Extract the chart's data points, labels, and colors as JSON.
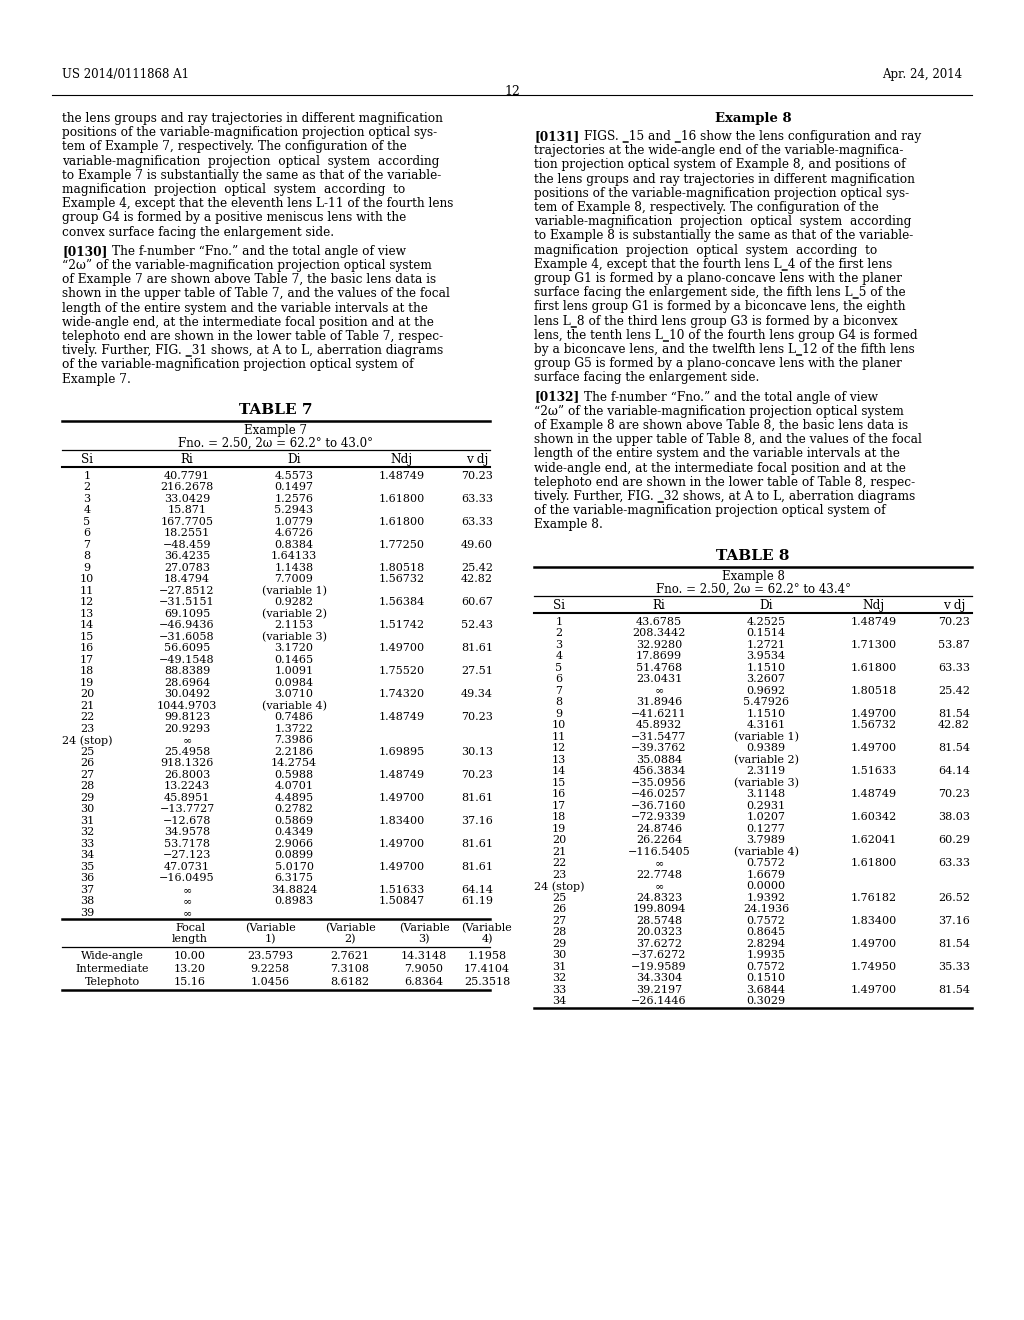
{
  "header_left": "US 2014/0111868 A1",
  "header_right": "Apr. 24, 2014",
  "page_number": "12",
  "table7_title": "TABLE 7",
  "table7_example": "Example 7",
  "table7_fno": "Fno. = 2.50, 2ω = 62.2° to 43.0°",
  "table7_headers": [
    "Si",
    "Ri",
    "Di",
    "Ndj",
    "v dj"
  ],
  "table7_upper": [
    [
      "1",
      "40.7791",
      "4.5573",
      "1.48749",
      "70.23"
    ],
    [
      "2",
      "216.2678",
      "0.1497",
      "",
      ""
    ],
    [
      "3",
      "33.0429",
      "1.2576",
      "1.61800",
      "63.33"
    ],
    [
      "4",
      "15.871",
      "5.2943",
      "",
      ""
    ],
    [
      "5",
      "167.7705",
      "1.0779",
      "1.61800",
      "63.33"
    ],
    [
      "6",
      "18.2551",
      "4.6726",
      "",
      ""
    ],
    [
      "7",
      "−48.459",
      "0.8384",
      "1.77250",
      "49.60"
    ],
    [
      "8",
      "36.4235",
      "1.64133",
      "",
      ""
    ],
    [
      "9",
      "27.0783",
      "1.1438",
      "1.80518",
      "25.42"
    ],
    [
      "10",
      "18.4794",
      "7.7009",
      "1.56732",
      "42.82"
    ],
    [
      "11",
      "−27.8512",
      "(variable 1)",
      "",
      ""
    ],
    [
      "12",
      "−31.5151",
      "0.9282",
      "1.56384",
      "60.67"
    ],
    [
      "13",
      "69.1095",
      "(variable 2)",
      "",
      ""
    ],
    [
      "14",
      "−46.9436",
      "2.1153",
      "1.51742",
      "52.43"
    ],
    [
      "15",
      "−31.6058",
      "(variable 3)",
      "",
      ""
    ],
    [
      "16",
      "56.6095",
      "3.1720",
      "1.49700",
      "81.61"
    ],
    [
      "17",
      "−49.1548",
      "0.1465",
      "",
      ""
    ],
    [
      "18",
      "88.8389",
      "1.0091",
      "1.75520",
      "27.51"
    ],
    [
      "19",
      "28.6964",
      "0.0984",
      "",
      ""
    ],
    [
      "20",
      "30.0492",
      "3.0710",
      "1.74320",
      "49.34"
    ],
    [
      "21",
      "1044.9703",
      "(variable 4)",
      "",
      ""
    ],
    [
      "22",
      "99.8123",
      "0.7486",
      "1.48749",
      "70.23"
    ],
    [
      "23",
      "20.9293",
      "1.3722",
      "",
      ""
    ],
    [
      "24 (stop)",
      "∞",
      "7.3986",
      "",
      ""
    ],
    [
      "25",
      "25.4958",
      "2.2186",
      "1.69895",
      "30.13"
    ],
    [
      "26",
      "918.1326",
      "14.2754",
      "",
      ""
    ],
    [
      "27",
      "26.8003",
      "0.5988",
      "1.48749",
      "70.23"
    ],
    [
      "28",
      "13.2243",
      "4.0701",
      "",
      ""
    ],
    [
      "29",
      "45.8951",
      "4.4895",
      "1.49700",
      "81.61"
    ],
    [
      "30",
      "−13.7727",
      "0.2782",
      "",
      ""
    ],
    [
      "31",
      "−12.678",
      "0.5869",
      "1.83400",
      "37.16"
    ],
    [
      "32",
      "34.9578",
      "0.4349",
      "",
      ""
    ],
    [
      "33",
      "53.7178",
      "2.9066",
      "1.49700",
      "81.61"
    ],
    [
      "34",
      "−27.123",
      "0.0899",
      "",
      ""
    ],
    [
      "35",
      "47.0731",
      "5.0170",
      "1.49700",
      "81.61"
    ],
    [
      "36",
      "−16.0495",
      "6.3175",
      "",
      ""
    ],
    [
      "37",
      "∞",
      "34.8824",
      "1.51633",
      "64.14"
    ],
    [
      "38",
      "∞",
      "0.8983",
      "1.50847",
      "61.19"
    ],
    [
      "39",
      "∞",
      "",
      "",
      ""
    ]
  ],
  "table7_lower": [
    [
      "Wide-angle",
      "10.00",
      "23.5793",
      "2.7621",
      "14.3148",
      "1.1958"
    ],
    [
      "Intermediate",
      "13.20",
      "9.2258",
      "7.3108",
      "7.9050",
      "17.4104"
    ],
    [
      "Telephoto",
      "15.16",
      "1.0456",
      "8.6182",
      "6.8364",
      "25.3518"
    ]
  ],
  "table8_title": "TABLE 8",
  "table8_example": "Example 8",
  "table8_fno": "Fno. = 2.50, 2ω = 62.2° to 43.4°",
  "table8_headers": [
    "Si",
    "Ri",
    "Di",
    "Ndj",
    "v dj"
  ],
  "table8_upper": [
    [
      "1",
      "43.6785",
      "4.2525",
      "1.48749",
      "70.23"
    ],
    [
      "2",
      "208.3442",
      "0.1514",
      "",
      ""
    ],
    [
      "3",
      "32.9280",
      "1.2721",
      "1.71300",
      "53.87"
    ],
    [
      "4",
      "17.8699",
      "3.9534",
      "",
      ""
    ],
    [
      "5",
      "51.4768",
      "1.1510",
      "1.61800",
      "63.33"
    ],
    [
      "6",
      "23.0431",
      "3.2607",
      "",
      ""
    ],
    [
      "7",
      "∞",
      "0.9692",
      "1.80518",
      "25.42"
    ],
    [
      "8",
      "31.8946",
      "5.47926",
      "",
      ""
    ],
    [
      "9",
      "−41.6211",
      "1.1510",
      "1.49700",
      "81.54"
    ],
    [
      "10",
      "45.8932",
      "4.3161",
      "1.56732",
      "42.82"
    ],
    [
      "11",
      "−31.5477",
      "(variable 1)",
      "",
      ""
    ],
    [
      "12",
      "−39.3762",
      "0.9389",
      "1.49700",
      "81.54"
    ],
    [
      "13",
      "35.0884",
      "(variable 2)",
      "",
      ""
    ],
    [
      "14",
      "456.3834",
      "2.3119",
      "1.51633",
      "64.14"
    ],
    [
      "15",
      "−35.0956",
      "(variable 3)",
      "",
      ""
    ],
    [
      "16",
      "−46.0257",
      "3.1148",
      "1.48749",
      "70.23"
    ],
    [
      "17",
      "−36.7160",
      "0.2931",
      "",
      ""
    ],
    [
      "18",
      "−72.9339",
      "1.0207",
      "1.60342",
      "38.03"
    ],
    [
      "19",
      "24.8746",
      "0.1277",
      "",
      ""
    ],
    [
      "20",
      "26.2264",
      "3.7989",
      "1.62041",
      "60.29"
    ],
    [
      "21",
      "−116.5405",
      "(variable 4)",
      "",
      ""
    ],
    [
      "22",
      "∞",
      "0.7572",
      "1.61800",
      "63.33"
    ],
    [
      "23",
      "22.7748",
      "1.6679",
      "",
      ""
    ],
    [
      "24 (stop)",
      "∞",
      "0.0000",
      "",
      ""
    ],
    [
      "25",
      "24.8323",
      "1.9392",
      "1.76182",
      "26.52"
    ],
    [
      "26",
      "199.8094",
      "24.1936",
      "",
      ""
    ],
    [
      "27",
      "28.5748",
      "0.7572",
      "1.83400",
      "37.16"
    ],
    [
      "28",
      "20.0323",
      "0.8645",
      "",
      ""
    ],
    [
      "29",
      "37.6272",
      "2.8294",
      "1.49700",
      "81.54"
    ],
    [
      "30",
      "−37.6272",
      "1.9935",
      "",
      ""
    ],
    [
      "31",
      "−19.9589",
      "0.7572",
      "1.74950",
      "35.33"
    ],
    [
      "32",
      "34.3304",
      "0.1510",
      "",
      ""
    ],
    [
      "33",
      "39.2197",
      "3.6844",
      "1.49700",
      "81.54"
    ],
    [
      "34",
      "−26.1446",
      "0.3029",
      "",
      ""
    ]
  ],
  "bg_color": "#ffffff",
  "text_color": "#000000"
}
